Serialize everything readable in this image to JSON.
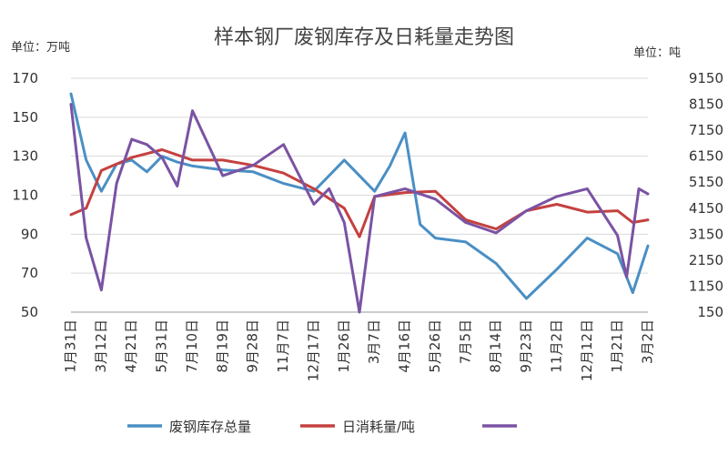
{
  "chart_data": {
    "type": "line",
    "title": "样本钢厂废钢库存及日耗量走势图",
    "left_unit": "单位：万吨",
    "right_unit": "单位：吨",
    "x_tick_labels": [
      "1月31日",
      "3月12日",
      "4月21日",
      "5月31日",
      "7月10日",
      "8月19日",
      "9月28日",
      "11月7日",
      "12月17日",
      "1月26日",
      "3月7日",
      "4月16日",
      "5月26日",
      "7月5日",
      "8月14日",
      "9月23日",
      "11月2日",
      "12月12日",
      "1月21日",
      "3月2日"
    ],
    "left_axis": {
      "ylim": [
        50,
        170
      ],
      "ticks": [
        50,
        70,
        90,
        110,
        130,
        150,
        170
      ]
    },
    "right_axis": {
      "ylim": [
        150,
        9150
      ],
      "ticks": [
        150,
        1150,
        2150,
        3150,
        4150,
        5150,
        6150,
        7150,
        8150,
        9150
      ]
    },
    "grid": true,
    "legend_position": "bottom",
    "series": [
      {
        "name": "废钢库存总量",
        "axis": "left",
        "color": "#4a8fc4",
        "x": [
          0,
          0.5,
          1,
          1.5,
          2,
          2.5,
          3,
          3.5,
          4,
          5,
          6,
          7,
          8,
          9,
          10,
          10.5,
          11,
          11.5,
          12,
          13,
          14,
          15,
          16,
          17,
          18,
          18.5,
          19
        ],
        "values": [
          162,
          128,
          112,
          126,
          128,
          122,
          130,
          127,
          125,
          123,
          122,
          116,
          112,
          128,
          112,
          125,
          142,
          95,
          88,
          86,
          75,
          57,
          72,
          88,
          80,
          60,
          84
        ]
      },
      {
        "name": "日消耗量/吨",
        "axis": "right",
        "color": "#c4413f",
        "x": [
          0,
          0.5,
          1,
          2,
          3,
          4,
          5,
          6,
          7,
          8,
          9,
          9.5,
          10,
          11,
          12,
          13,
          14,
          15,
          16,
          17,
          18,
          18.5,
          19
        ],
        "values": [
          3900,
          4150,
          5600,
          6100,
          6400,
          6000,
          6000,
          5800,
          5500,
          4900,
          4150,
          3050,
          4600,
          4750,
          4800,
          3700,
          3350,
          4050,
          4300,
          4000,
          4050,
          3600,
          3700
        ]
      },
      {
        "name": "",
        "axis": "right",
        "color": "#7a53a3",
        "x": [
          0,
          0.5,
          1,
          1.5,
          2,
          2.5,
          3,
          3.5,
          4,
          5,
          6,
          7,
          8,
          8.5,
          9,
          9.5,
          10,
          11,
          12,
          13,
          14,
          15,
          16,
          17,
          18,
          18.3,
          18.7,
          19
        ],
        "values": [
          8150,
          3000,
          1000,
          5100,
          6800,
          6600,
          6100,
          5000,
          7900,
          5400,
          5800,
          6600,
          4300,
          4900,
          3600,
          150,
          4600,
          4900,
          4500,
          3600,
          3200,
          4050,
          4600,
          4900,
          3100,
          1500,
          4900,
          4700
        ]
      }
    ]
  }
}
